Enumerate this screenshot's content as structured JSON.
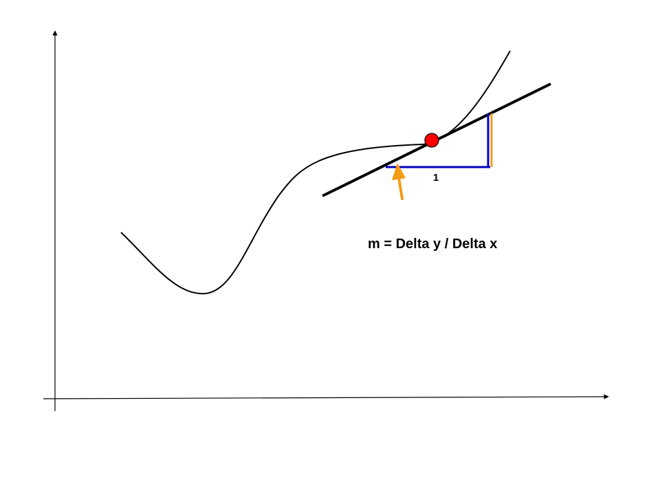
{
  "diagram": {
    "run_label": "1",
    "formula": "m = Delta y / Delta x",
    "colors": {
      "background": "#ffffff",
      "axes": "#000000",
      "curve": "#000000",
      "tangent_line": "#000000",
      "tangent_point": "#ff0000",
      "run_segment": "#0000c0",
      "rise_segment": "#f39c12",
      "pointer_arrow": "#f39c12"
    }
  }
}
